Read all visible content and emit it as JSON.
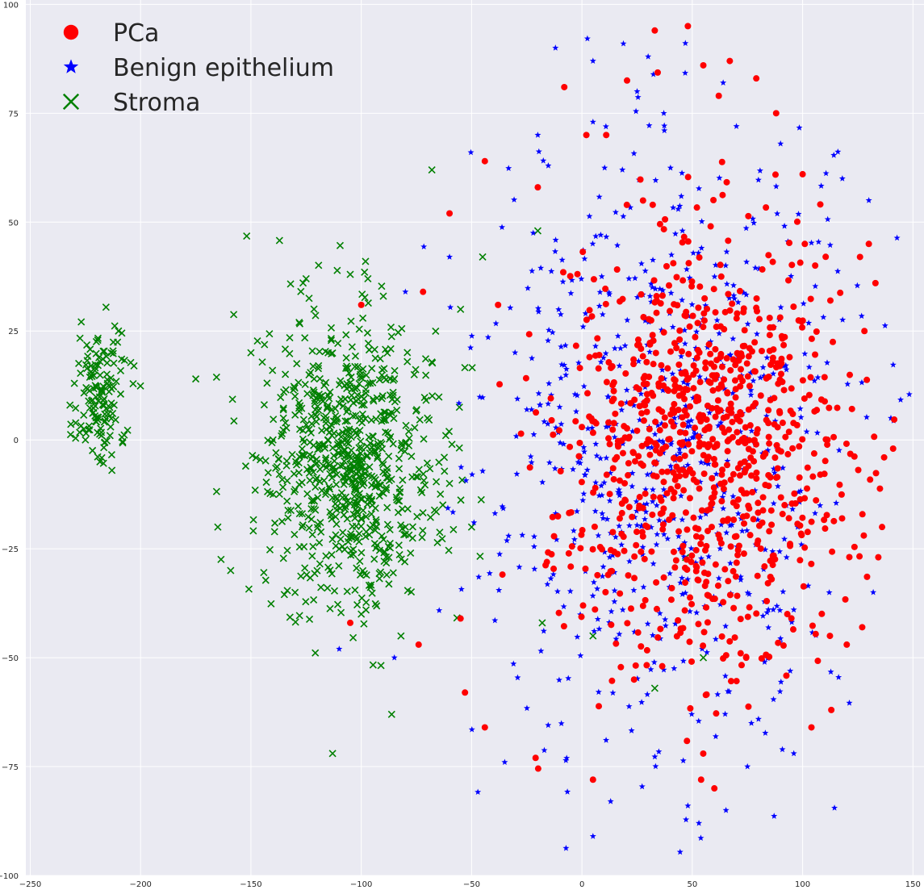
{
  "chart_data": {
    "type": "scatter",
    "title": "",
    "xlabel": "",
    "ylabel": "",
    "xlim": [
      -252,
      155
    ],
    "ylim": [
      -100,
      101
    ],
    "xticks": [
      -250,
      -200,
      -150,
      -100,
      -50,
      0,
      50,
      100,
      150
    ],
    "yticks": [
      -100,
      -75,
      -50,
      -25,
      0,
      25,
      50,
      75,
      100
    ],
    "grid": true,
    "legend_position": "upper-left",
    "series": [
      {
        "name": "PCa",
        "marker": "circle",
        "color": "#ff0000",
        "description": "dense cluster centered near (55, 0), spanning x roughly -60..142, y roughly -80..95",
        "samples": [
          [
            48,
            95
          ],
          [
            33,
            94
          ],
          [
            55,
            86
          ],
          [
            67,
            87
          ],
          [
            79,
            83
          ],
          [
            -8,
            81
          ],
          [
            2,
            70
          ],
          [
            11,
            70
          ],
          [
            62,
            79
          ],
          [
            88,
            75
          ],
          [
            100,
            61
          ],
          [
            -20,
            58
          ],
          [
            -44,
            64
          ],
          [
            126,
            42
          ],
          [
            141,
            -2
          ],
          [
            128,
            25
          ],
          [
            -60,
            52
          ],
          [
            -38,
            31
          ],
          [
            -72,
            34
          ],
          [
            -100,
            31
          ],
          [
            -105,
            -42
          ],
          [
            -74,
            -47
          ],
          [
            -21,
            -73
          ],
          [
            -44,
            -66
          ],
          [
            -53,
            -58
          ],
          [
            -55,
            -41
          ],
          [
            5,
            -78
          ],
          [
            54,
            -78
          ],
          [
            60,
            -80
          ],
          [
            104,
            -66
          ],
          [
            113,
            -62
          ],
          [
            120,
            -47
          ],
          [
            127,
            -43
          ],
          [
            136,
            -20
          ],
          [
            133,
            36
          ],
          [
            130,
            45
          ],
          [
            101,
            45
          ]
        ]
      },
      {
        "name": "Benign epithelium",
        "marker": "star",
        "color": "#0000ff",
        "description": "broad cloud overlapping PCa, spanning x roughly -110..140, y roughly -91..90",
        "samples": [
          [
            -12,
            90
          ],
          [
            5,
            87
          ],
          [
            30,
            88
          ],
          [
            64,
            82
          ],
          [
            -20,
            70
          ],
          [
            90,
            68
          ],
          [
            -60,
            42
          ],
          [
            -80,
            34
          ],
          [
            -85,
            -50
          ],
          [
            -110,
            -48
          ],
          [
            -35,
            -74
          ],
          [
            5,
            -91
          ],
          [
            13,
            -83
          ],
          [
            48,
            -84
          ],
          [
            53,
            -88
          ],
          [
            75,
            -75
          ],
          [
            96,
            -72
          ],
          [
            132,
            -35
          ],
          [
            130,
            55
          ],
          [
            118,
            60
          ],
          [
            140,
            5
          ],
          [
            5,
            73
          ],
          [
            25,
            80
          ],
          [
            70,
            72
          ]
        ]
      },
      {
        "name": "Stroma",
        "marker": "x",
        "color": "#008000",
        "description": "main cluster centered near (-105, -5) plus small isolated cluster near (-218, 10)",
        "samples": [
          [
            -220,
            12
          ],
          [
            -232,
            8
          ],
          [
            -210,
            25
          ],
          [
            -213,
            -7
          ],
          [
            -230,
            13
          ],
          [
            -203,
            17
          ],
          [
            -212,
            8
          ],
          [
            -225,
            0
          ],
          [
            -175,
            14
          ],
          [
            -165,
            -20
          ],
          [
            -150,
            20
          ],
          [
            -125,
            37
          ],
          [
            -105,
            38
          ],
          [
            -97,
            37
          ],
          [
            -90,
            33
          ],
          [
            -68,
            62
          ],
          [
            -130,
            -35
          ],
          [
            -100,
            -40
          ],
          [
            -113,
            -72
          ],
          [
            -120,
            -30
          ],
          [
            -55,
            30
          ],
          [
            -45,
            42
          ],
          [
            -140,
            0
          ],
          [
            -100,
            10
          ],
          [
            -95,
            -15
          ],
          [
            -80,
            -20
          ],
          [
            -70,
            5
          ],
          [
            -60,
            -10
          ],
          [
            -50,
            -20
          ],
          [
            -115,
            20
          ],
          [
            -130,
            10
          ],
          [
            -110,
            -25
          ],
          [
            47,
            -27
          ],
          [
            -20,
            48
          ],
          [
            33,
            -57
          ],
          [
            55,
            -50
          ],
          [
            5,
            -45
          ],
          [
            -18,
            -42
          ]
        ]
      }
    ]
  }
}
